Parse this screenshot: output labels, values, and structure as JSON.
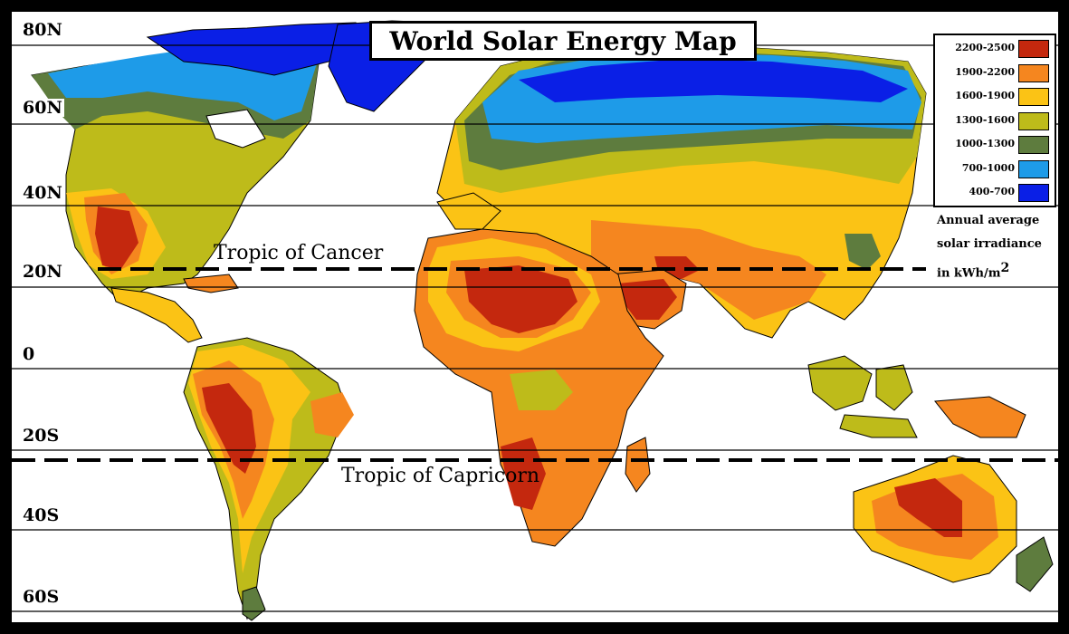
{
  "title": "World Solar Energy  Map",
  "latitude_labels": [
    "80N",
    "60N",
    "40N",
    "20N",
    "0",
    "20S",
    "40S",
    "60S"
  ],
  "tropics": {
    "cancer": "Tropic of Cancer",
    "capricorn": "Tropic of Capricorn"
  },
  "legend": {
    "items": [
      {
        "label": "2200-2500",
        "color": "#c4280e"
      },
      {
        "label": "1900-2200",
        "color": "#f5861f"
      },
      {
        "label": "1600-1900",
        "color": "#fbc315"
      },
      {
        "label": "1300-1600",
        "color": "#bebb1a"
      },
      {
        "label": "1000-1300",
        "color": "#5e7c3e"
      },
      {
        "label": "700-1000",
        "color": "#1e9be8"
      },
      {
        "label": "400-700",
        "color": "#0a1fe6"
      }
    ],
    "caption_line1": "Annual average",
    "caption_line2": "solar irradiance",
    "caption_line3": "in kWh/m",
    "caption_sup": "2"
  },
  "colors": {
    "frame": "#000000",
    "ocean": "#ffffff",
    "outline": "#000000"
  }
}
